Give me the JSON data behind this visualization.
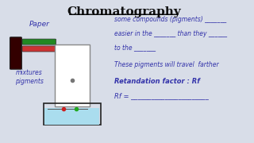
{
  "title": "Chromatography",
  "bg_color": "#d8dde8",
  "text_color_blue": "#3333aa",
  "text_color_dark": "#111111",
  "right_lines": [
    "some compounds (pigments) _______",
    "easier in the _______ than they ______",
    "to the _______",
    "These pigments will travel  farther",
    "Retandation factor : Rf",
    "Rf = _______________________"
  ],
  "left_label_paper": "Paper",
  "left_label_mixtures": "mixtures",
  "left_label_pigments": "pigments",
  "pen_green": "#228822",
  "pen_red": "#cc3333",
  "bottle_color": "#330000",
  "water_color": "#aaddee",
  "paper_color": "white"
}
